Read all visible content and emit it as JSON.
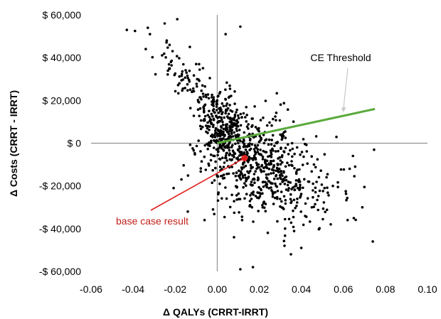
{
  "chart_data": {
    "type": "scatter",
    "xlabel": "Δ QALYs (CRRT-IRRT)",
    "ylabel": "Δ Costs (CRRT - IRRT)",
    "xlim": [
      -0.06,
      0.1
    ],
    "ylim": [
      -60000,
      60000
    ],
    "x_ticks": [
      -0.06,
      -0.04,
      -0.02,
      0.0,
      0.02,
      0.04,
      0.06,
      0.08,
      0.1
    ],
    "x_tick_labels": [
      "-0.06",
      "-0.04",
      "-0.02",
      "0.00",
      "0.02",
      "0.04",
      "0.06",
      "0.08",
      "0.10"
    ],
    "y_ticks": [
      60000,
      40000,
      20000,
      0,
      -20000,
      -40000,
      -60000
    ],
    "y_tick_labels": [
      "$ 60,000",
      "$ 40,000",
      "$ 20,000",
      "$ 0",
      "-$ 20,000",
      "-$ 40,000",
      "-$ 60,000"
    ],
    "grid": false,
    "colors": {
      "points": "#000000",
      "threshold": "#5aaa3c",
      "base_case": "#e0201c",
      "base_label": "#c0201a",
      "threshold_arrow": "#c8c8c8"
    },
    "threshold_line": {
      "x": [
        0.0,
        0.075
      ],
      "y": [
        0,
        16000
      ]
    },
    "base_case": {
      "x": 0.013,
      "y": -7000
    },
    "annotations": {
      "ce_threshold": {
        "text": "CE Threshold",
        "points_to": {
          "x": 0.06,
          "y": 14500
        }
      },
      "base_case": {
        "text": "base case result",
        "points_to": {
          "x": 0.013,
          "y": -7000
        }
      }
    },
    "n_cloud_points": 1000,
    "representative_points": [
      {
        "x": -0.043,
        "y": 53000
      },
      {
        "x": -0.033,
        "y": 54000
      },
      {
        "x": -0.032,
        "y": 51000
      },
      {
        "x": -0.034,
        "y": 44000
      },
      {
        "x": -0.025,
        "y": 56000
      },
      {
        "x": -0.019,
        "y": 58000
      },
      {
        "x": -0.024,
        "y": 48000
      },
      {
        "x": -0.022,
        "y": 38000
      },
      {
        "x": -0.013,
        "y": 45000
      },
      {
        "x": -0.01,
        "y": 37000
      },
      {
        "x": 0.004,
        "y": 51000
      },
      {
        "x": 0.011,
        "y": 54500
      },
      {
        "x": -0.018,
        "y": 28000
      },
      {
        "x": -0.012,
        "y": 24000
      },
      {
        "x": -0.007,
        "y": 27000
      },
      {
        "x": -0.004,
        "y": 21000
      },
      {
        "x": 0.0,
        "y": 20000
      },
      {
        "x": 0.004,
        "y": 14000
      },
      {
        "x": 0.006,
        "y": 8000
      },
      {
        "x": 0.002,
        "y": 2000
      },
      {
        "x": 0.01,
        "y": 3000
      },
      {
        "x": 0.018,
        "y": -1000
      },
      {
        "x": 0.025,
        "y": -6000
      },
      {
        "x": 0.015,
        "y": -14000
      },
      {
        "x": 0.028,
        "y": -20000
      },
      {
        "x": 0.035,
        "y": -24000
      },
      {
        "x": 0.022,
        "y": -28000
      },
      {
        "x": 0.045,
        "y": -30000
      },
      {
        "x": 0.054,
        "y": -38000
      },
      {
        "x": 0.062,
        "y": -36000
      },
      {
        "x": 0.069,
        "y": -30000
      },
      {
        "x": 0.074,
        "y": -46000
      },
      {
        "x": 0.04,
        "y": -49000
      },
      {
        "x": 0.032,
        "y": -48000
      },
      {
        "x": 0.011,
        "y": -59000
      },
      {
        "x": 0.017,
        "y": -58000
      },
      {
        "x": -0.006,
        "y": -36000
      },
      {
        "x": -0.014,
        "y": -32000
      },
      {
        "x": -0.002,
        "y": -31000
      },
      {
        "x": 0.008,
        "y": -44000
      },
      {
        "x": -0.017,
        "y": -17000
      },
      {
        "x": -0.003,
        "y": -8000
      },
      {
        "x": 0.052,
        "y": -16000
      },
      {
        "x": 0.063,
        "y": -12000
      },
      {
        "x": 0.055,
        "y": -20000
      },
      {
        "x": 0.03,
        "y": 4000
      },
      {
        "x": 0.038,
        "y": -2000
      },
      {
        "x": 0.046,
        "y": -10000
      }
    ]
  }
}
